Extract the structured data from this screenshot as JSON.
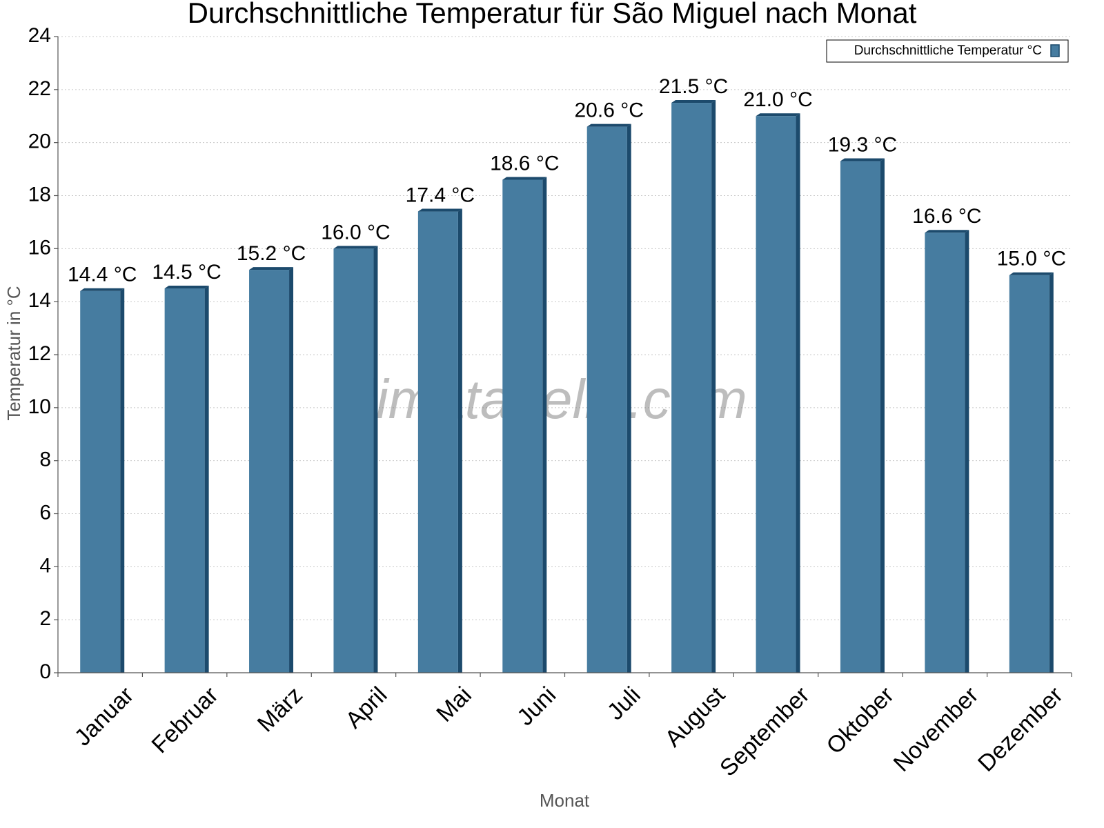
{
  "chart_data": {
    "type": "bar",
    "title": "Durchschnittliche Temperatur für São Miguel nach Monat",
    "x_label": "Monat",
    "y_label": "Temperatur in °C",
    "watermark": "klimatabelle.com",
    "categories": [
      "Januar",
      "Februar",
      "März",
      "April",
      "Mai",
      "Juni",
      "Juli",
      "August",
      "September",
      "Oktober",
      "November",
      "Dezember"
    ],
    "series": [
      {
        "name": "Durchschnittliche Temperatur °C",
        "color": "#467ca0",
        "values": [
          14.4,
          14.5,
          15.2,
          16.0,
          17.4,
          18.6,
          20.6,
          21.5,
          21.0,
          19.3,
          16.6,
          15.0
        ],
        "value_labels": [
          "14.4 °C",
          "14.5 °C",
          "15.2 °C",
          "16.0 °C",
          "17.4 °C",
          "18.6 °C",
          "20.6 °C",
          "21.5 °C",
          "21.0 °C",
          "19.3 °C",
          "16.6 °C",
          "15.0 °C"
        ]
      }
    ],
    "ylim": [
      0,
      24
    ],
    "yticks": [
      0,
      2,
      4,
      6,
      8,
      10,
      12,
      14,
      16,
      18,
      20,
      22,
      24
    ],
    "grid": true,
    "legend": "top-right"
  }
}
